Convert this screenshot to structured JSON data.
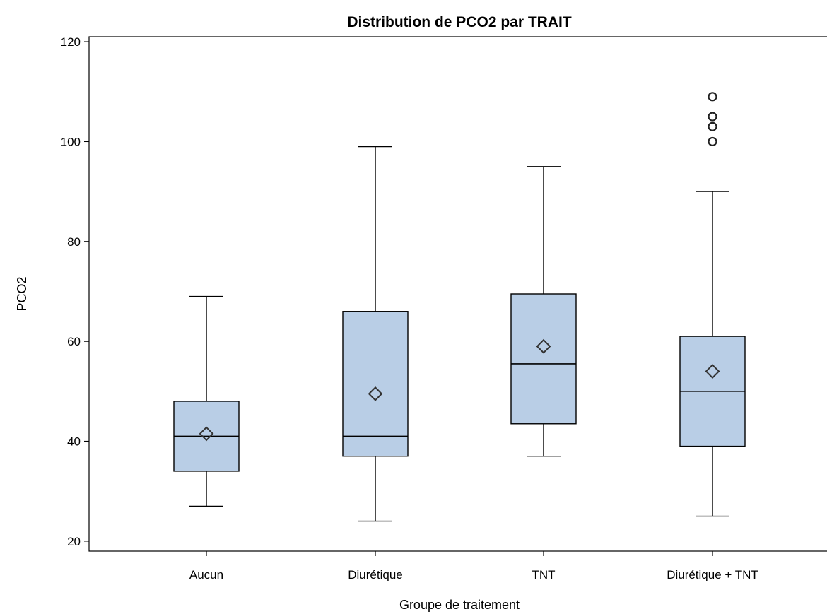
{
  "chart_data": {
    "type": "boxplot",
    "title": "Distribution de PCO2 par TRAIT",
    "xlabel": "Groupe de traitement",
    "ylabel": "PCO2",
    "ylim": [
      18,
      121
    ],
    "yticks": [
      "20",
      "40",
      "60",
      "80",
      "100",
      "120"
    ],
    "grid": false,
    "box_color": "#b9cee6",
    "line_color": "#000000",
    "categories": [
      "Aucun",
      "Diurétique",
      "TNT",
      "Diurétique + TNT"
    ],
    "series": [
      {
        "min": 27,
        "q1": 34,
        "median": 41,
        "q3": 48,
        "max": 69,
        "mean": 41.5,
        "outliers": []
      },
      {
        "min": 24,
        "q1": 37,
        "median": 41,
        "q3": 66,
        "max": 99,
        "mean": 49.5,
        "outliers": []
      },
      {
        "min": 37,
        "q1": 43.5,
        "median": 55.5,
        "q3": 69.5,
        "max": 95,
        "mean": 59,
        "outliers": []
      },
      {
        "min": 25,
        "q1": 39,
        "median": 50,
        "q3": 61,
        "max": 90,
        "mean": 54,
        "outliers": [
          100,
          103,
          105,
          109
        ]
      }
    ]
  }
}
